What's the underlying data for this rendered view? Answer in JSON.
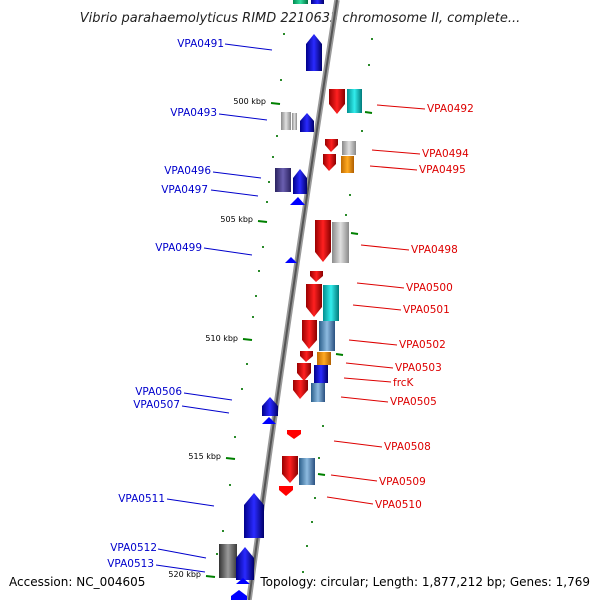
{
  "title": "Vibrio parahaemolyticus RIMD 2210633 chromosome II, complete...",
  "footer": {
    "accession": "Accession: NC_004605",
    "summary": "Topology: circular; Length: 1,877,212 bp; Genes: 1,769"
  },
  "ticks": [
    {
      "label": "500 kbp"
    },
    {
      "label": "505 kbp"
    },
    {
      "label": "510 kbp"
    },
    {
      "label": "515 kbp"
    },
    {
      "label": "520 kbp"
    }
  ],
  "left_labels": [
    {
      "text": "VPA0491"
    },
    {
      "text": "VPA0493"
    },
    {
      "text": "VPA0496"
    },
    {
      "text": "VPA0497"
    },
    {
      "text": "VPA0499"
    },
    {
      "text": "VPA0506"
    },
    {
      "text": "VPA0507"
    },
    {
      "text": "VPA0511"
    },
    {
      "text": "VPA0512"
    },
    {
      "text": "VPA0513"
    }
  ],
  "right_labels": [
    {
      "text": "VPA0492"
    },
    {
      "text": "VPA0494"
    },
    {
      "text": "VPA0495"
    },
    {
      "text": "VPA0498"
    },
    {
      "text": "VPA0500"
    },
    {
      "text": "VPA0501"
    },
    {
      "text": "VPA0502"
    },
    {
      "text": "VPA0503"
    },
    {
      "text": "frcK"
    },
    {
      "text": "VPA0505"
    },
    {
      "text": "VPA0508"
    },
    {
      "text": "VPA0509"
    },
    {
      "text": "VPA0510"
    }
  ],
  "colors": {
    "forward_strand": "#0000ff",
    "reverse_strand": "#ff0000",
    "leader_left": "#0000cc",
    "leader_right": "#dd0000",
    "tick": "#008000"
  }
}
